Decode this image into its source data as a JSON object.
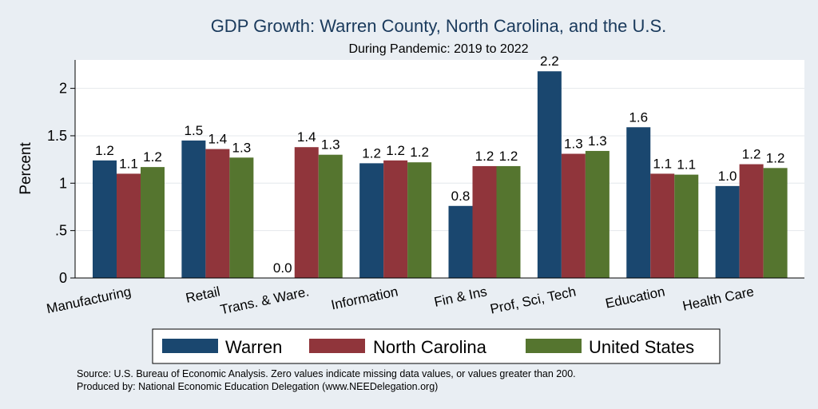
{
  "chart_data": {
    "type": "bar",
    "title": "GDP Growth: Warren County, North Carolina, and the U.S.",
    "subtitle": "During Pandemic: 2019 to 2022",
    "xlabel": "",
    "ylabel": "Percent",
    "ylim": [
      0,
      2.3
    ],
    "yticks": [
      0,
      0.5,
      1,
      1.5,
      2
    ],
    "ytick_labels": [
      "0",
      ".5",
      "1",
      "1.5",
      "2"
    ],
    "categories": [
      "Manufacturing",
      "Retail",
      "Trans. & Ware.",
      "Information",
      "Fin & Ins",
      "Prof, Sci, Tech",
      "Education",
      "Health Care"
    ],
    "series": [
      {
        "name": "Warren",
        "color": "#1a476f",
        "values": [
          1.24,
          1.45,
          0.0,
          1.21,
          0.76,
          2.18,
          1.59,
          0.97
        ],
        "labels": [
          "1.2",
          "1.5",
          "0.0",
          "1.2",
          "0.8",
          "2.2",
          "1.6",
          "1.0"
        ]
      },
      {
        "name": "North Carolina",
        "color": "#90353b",
        "values": [
          1.1,
          1.36,
          1.38,
          1.24,
          1.18,
          1.31,
          1.1,
          1.2
        ],
        "labels": [
          "1.1",
          "1.4",
          "1.4",
          "1.2",
          "1.2",
          "1.3",
          "1.1",
          "1.2"
        ]
      },
      {
        "name": "United States",
        "color": "#55752f",
        "values": [
          1.17,
          1.27,
          1.3,
          1.22,
          1.18,
          1.34,
          1.09,
          1.16
        ],
        "labels": [
          "1.2",
          "1.3",
          "1.3",
          "1.2",
          "1.2",
          "1.3",
          "1.1",
          "1.2"
        ]
      }
    ],
    "grid": true,
    "legend_position": "bottom"
  },
  "notes": {
    "source": "Source: U.S. Bureau of Economic Analysis. Zero values indicate missing data values, or values greater than 200.",
    "produced_by": "Produced by: National Economic Education Delegation (www.NEEDelegation.org)"
  },
  "colors": {
    "background": "#e9eef3",
    "plot_background": "#ffffff",
    "grid": "#e4e8ec"
  }
}
